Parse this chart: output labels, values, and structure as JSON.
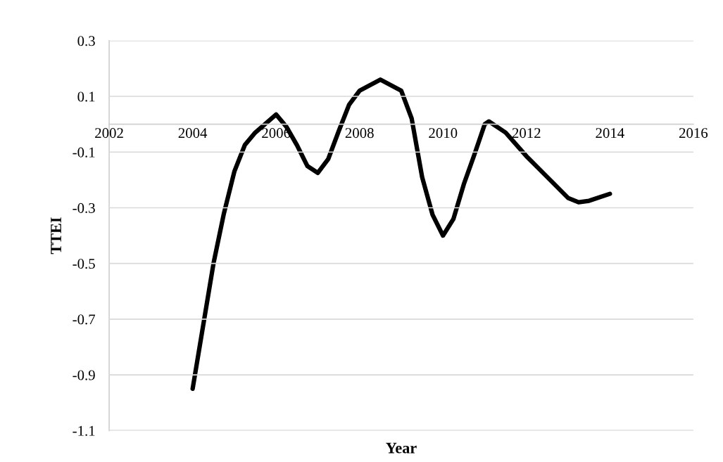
{
  "chart_data": {
    "type": "line",
    "xlabel": "Year",
    "ylabel": "TTEI",
    "x": [
      2004,
      2004.5,
      2004.75,
      2005,
      2005.25,
      2005.5,
      2006,
      2006.25,
      2006.5,
      2006.75,
      2007,
      2007.25,
      2007.5,
      2007.75,
      2008,
      2008.5,
      2009,
      2009.25,
      2009.5,
      2009.75,
      2010,
      2010.25,
      2010.5,
      2010.75,
      2011,
      2011.1,
      2011.5,
      2012,
      2012.5,
      2013,
      2013.25,
      2013.5,
      2014
    ],
    "series": [
      {
        "color": "#000000",
        "values": [
          -0.95,
          -0.5,
          -0.32,
          -0.17,
          -0.075,
          -0.03,
          0.035,
          -0.01,
          -0.075,
          -0.15,
          -0.175,
          -0.125,
          -0.025,
          0.07,
          0.12,
          0.16,
          0.12,
          0.02,
          -0.19,
          -0.325,
          -0.4,
          -0.34,
          -0.215,
          -0.11,
          0.0,
          0.01,
          -0.03,
          -0.115,
          -0.19,
          -0.265,
          -0.28,
          -0.275,
          -0.25
        ]
      }
    ],
    "xlim": [
      2002,
      2016
    ],
    "xticks": [
      2002,
      2004,
      2006,
      2008,
      2010,
      2012,
      2014,
      2016
    ],
    "ylim": [
      -1.1,
      0.3
    ],
    "yticks": [
      -1.1,
      -0.9,
      -0.7,
      -0.5,
      -0.3,
      -0.1,
      0.1,
      0.3
    ],
    "grid": "y",
    "marker": "none",
    "line_style": "solid",
    "legend": false
  }
}
